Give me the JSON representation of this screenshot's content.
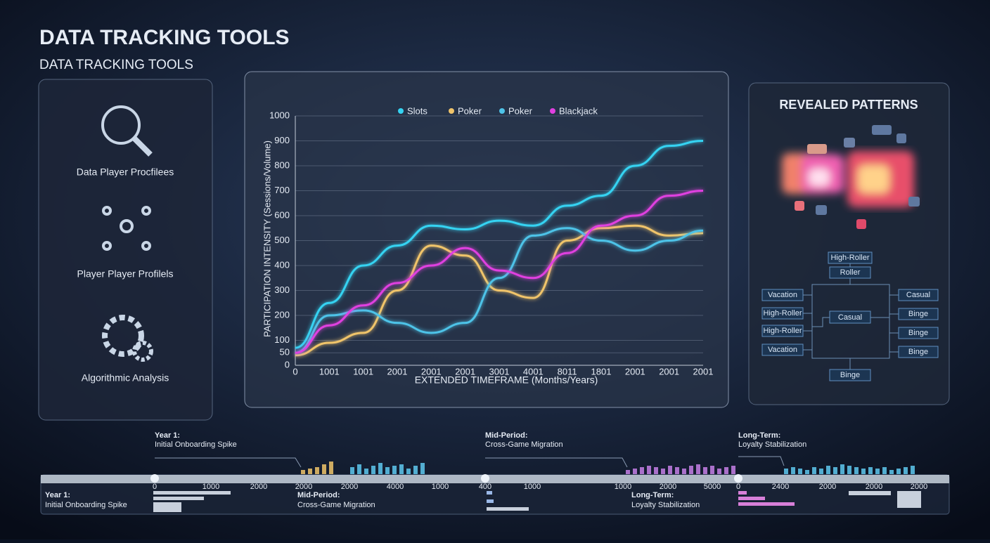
{
  "header": {
    "title": "DATA TRACKING TOOLS",
    "subtitle": "DATA TRACKING TOOLS"
  },
  "left_panel": {
    "items": [
      "Data Player Procfilees",
      "Player Player Profilels",
      "Algorithmic Analysis"
    ]
  },
  "chart_data": {
    "type": "line",
    "ylabel": "PARTICIPATION INTENSITY (Sessions/Volume)",
    "xlabel": "EXTENDED TIMEFRAME (Months/Years)",
    "categories": [
      "0",
      "1001",
      "1001",
      "2001",
      "2001",
      "2001",
      "3001",
      "4001",
      "8011",
      "1801",
      "2001",
      "2001",
      "2001"
    ],
    "series": [
      {
        "name": "Slots",
        "color": "#35d3f2",
        "values": [
          70,
          250,
          400,
          480,
          560,
          545,
          580,
          560,
          640,
          680,
          800,
          880,
          900
        ]
      },
      {
        "name": "Poker",
        "color": "#f0c46a",
        "values": [
          40,
          90,
          130,
          300,
          480,
          440,
          300,
          270,
          500,
          550,
          560,
          520,
          530
        ]
      },
      {
        "name": "Poker",
        "color": "#4ec3e8",
        "values": [
          50,
          200,
          220,
          170,
          130,
          170,
          350,
          520,
          550,
          500,
          460,
          500,
          540
        ]
      },
      {
        "name": "Blackjack",
        "color": "#e040e0",
        "values": [
          50,
          160,
          240,
          330,
          400,
          470,
          380,
          350,
          450,
          560,
          600,
          680,
          700
        ]
      }
    ],
    "ylim": [
      0,
      1000
    ],
    "yticks": [
      0,
      50,
      100,
      200,
      300,
      400,
      500,
      600,
      700,
      800,
      900,
      1000
    ],
    "grid": true
  },
  "patterns": {
    "title": "REVEALED PATTERNS",
    "top": [
      "High-Roller",
      "Roller"
    ],
    "left": [
      "Vacation",
      "High-Roller",
      "High-Roller",
      "Vacation"
    ],
    "center": "Casual",
    "right": [
      "Casual",
      "Binge",
      "Binge",
      "Binge"
    ],
    "bottom": "Binge"
  },
  "timeline": {
    "annotations": [
      {
        "heading": "Year 1:",
        "text": "Initial Onboarding Spike"
      },
      {
        "heading": "Mid-Period:",
        "text": "Cross-Game Migration"
      },
      {
        "heading": "Long-Term:",
        "text": "Loyalty Stabilization"
      }
    ],
    "ticks": [
      "0",
      "1000",
      "2000",
      "2000",
      "2000",
      "4000",
      "1000",
      "400",
      "1000",
      "1000",
      "2000",
      "5000",
      "0",
      "2400",
      "2000",
      "2000",
      "2000"
    ],
    "panels": [
      {
        "heading": "Year 1:",
        "text": "Initial Onboarding Spike"
      },
      {
        "heading": "Mid-Period:",
        "text": "Cross-Game Migration"
      },
      {
        "heading": "Long-Term:",
        "text": "Loyalty Stabilization"
      }
    ]
  }
}
